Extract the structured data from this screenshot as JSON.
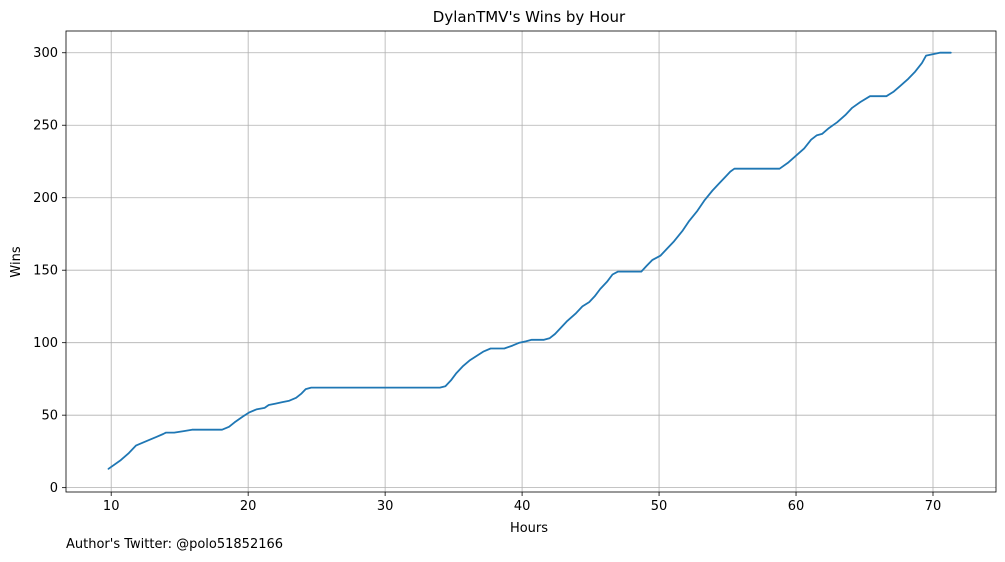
{
  "chart_data": {
    "type": "line",
    "title": "DylanTMV's Wins by Hour",
    "xlabel": "Hours",
    "ylabel": "Wins",
    "xlim": [
      6.7,
      74.6
    ],
    "ylim": [
      -3,
      315
    ],
    "xticks": [
      10,
      20,
      30,
      40,
      50,
      60,
      70
    ],
    "yticks": [
      0,
      50,
      100,
      150,
      200,
      250,
      300
    ],
    "grid": true,
    "color": "#1f77b4",
    "series": [
      {
        "x": [
          9.8,
          10.7,
          11.3,
          11.8,
          12.3,
          12.8,
          13.3,
          13.8,
          14.0,
          14.6,
          15.3,
          15.9,
          16.3,
          16.9,
          17.5,
          18.1,
          18.6,
          19.0,
          19.6,
          20.1,
          20.6,
          21.2,
          21.5,
          22.0,
          22.5,
          23.0,
          23.5,
          23.9,
          24.2,
          24.6,
          25.0,
          34.0,
          34.4,
          34.8,
          35.2,
          35.7,
          36.2,
          36.7,
          37.2,
          37.7,
          38.1,
          38.7,
          39.3,
          39.8,
          40.3,
          40.7,
          41.6,
          42.0,
          42.4,
          42.8,
          43.3,
          43.9,
          44.4,
          44.9,
          45.3,
          45.7,
          46.2,
          46.6,
          47.0,
          47.5,
          48.1,
          48.7,
          49.1,
          49.5,
          50.1,
          50.5,
          51.1,
          51.7,
          52.2,
          52.8,
          53.3,
          53.9,
          54.4,
          54.9,
          55.2,
          55.5,
          56.5,
          57.5,
          58.5,
          58.8,
          59.4,
          60.0,
          60.6,
          61.1,
          61.5,
          61.9,
          62.4,
          63.0,
          63.6,
          64.1,
          64.7,
          65.4,
          66.6,
          67.1,
          67.6,
          68.2,
          68.7,
          69.2,
          69.5,
          70.5,
          71.3
        ],
        "y": [
          13,
          19,
          24,
          29,
          31,
          33,
          35,
          37,
          38,
          38,
          39,
          40,
          40,
          40,
          40,
          40,
          42,
          45,
          49,
          52,
          54,
          55,
          57,
          58,
          59,
          60,
          62,
          65,
          68,
          69,
          69,
          69,
          70,
          74,
          79,
          84,
          88,
          91,
          94,
          96,
          96,
          96,
          98,
          100,
          101,
          102,
          102,
          103,
          106,
          110,
          115,
          120,
          125,
          128,
          132,
          137,
          142,
          147,
          149,
          149,
          149,
          149,
          153,
          157,
          160,
          164,
          170,
          177,
          184,
          191,
          198,
          205,
          210,
          215,
          218,
          220,
          220,
          220,
          220,
          220,
          224,
          229,
          234,
          240,
          243,
          244,
          248,
          252,
          257,
          262,
          266,
          270,
          270,
          273,
          277,
          282,
          287,
          293,
          298,
          300,
          300
        ]
      }
    ]
  },
  "footer": {
    "text": "Author's Twitter: @polo51852166"
  }
}
